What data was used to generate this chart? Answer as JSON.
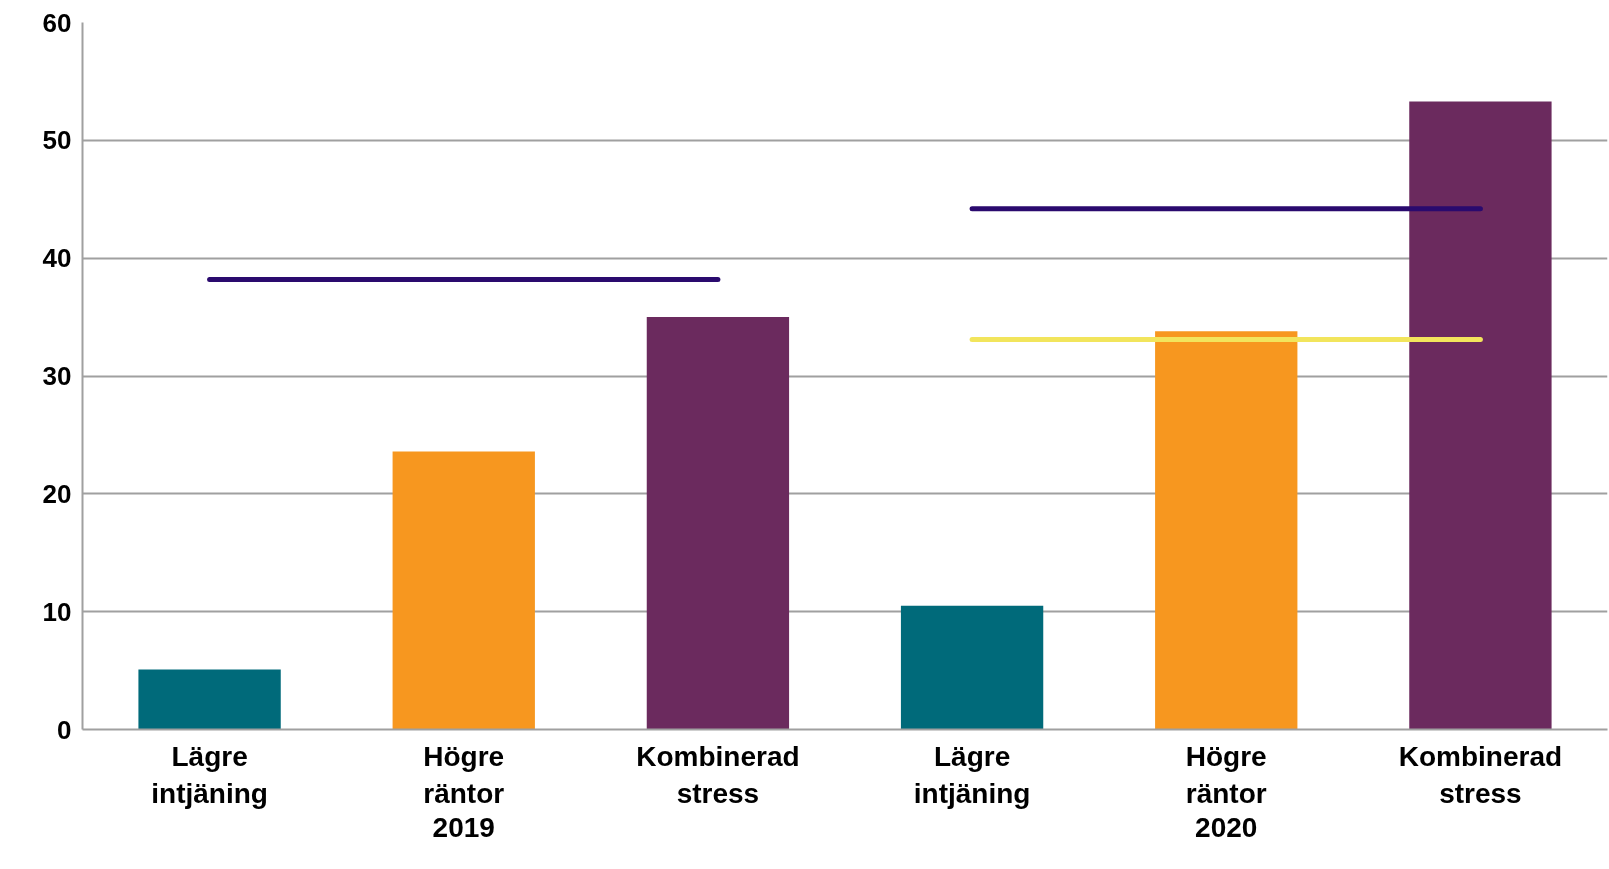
{
  "chart_data": {
    "type": "bar",
    "categories": [
      "Lägre\nintjäning",
      "Högre\nräntor",
      "Kombinerad\nstress",
      "Lägre\nintjäning",
      "Högre\nräntor",
      "Kombinerad\nstress"
    ],
    "values": [
      5.1,
      23.6,
      35.0,
      10.5,
      33.8,
      53.3
    ],
    "colors": [
      "#006a7a",
      "#f7971f",
      "#6b2a5e",
      "#006a7a",
      "#f7971f",
      "#6b2a5e"
    ],
    "series": [
      {
        "type": "line",
        "color": "#2a0a6e",
        "values": [
          38.2,
          38.2,
          38.2,
          null,
          null,
          null
        ]
      },
      {
        "type": "line",
        "color": "#2a0a6e",
        "values": [
          null,
          null,
          null,
          44.2,
          44.2,
          44.2
        ]
      },
      {
        "type": "line",
        "color": "#f2e55c",
        "values": [
          null,
          null,
          null,
          33.1,
          33.1,
          33.1
        ]
      }
    ],
    "annotations": [
      "2019",
      "2020"
    ],
    "ylim": [
      0,
      60
    ],
    "yticks": [
      0,
      10,
      20,
      30,
      40,
      50,
      60
    ],
    "grid": "y"
  }
}
